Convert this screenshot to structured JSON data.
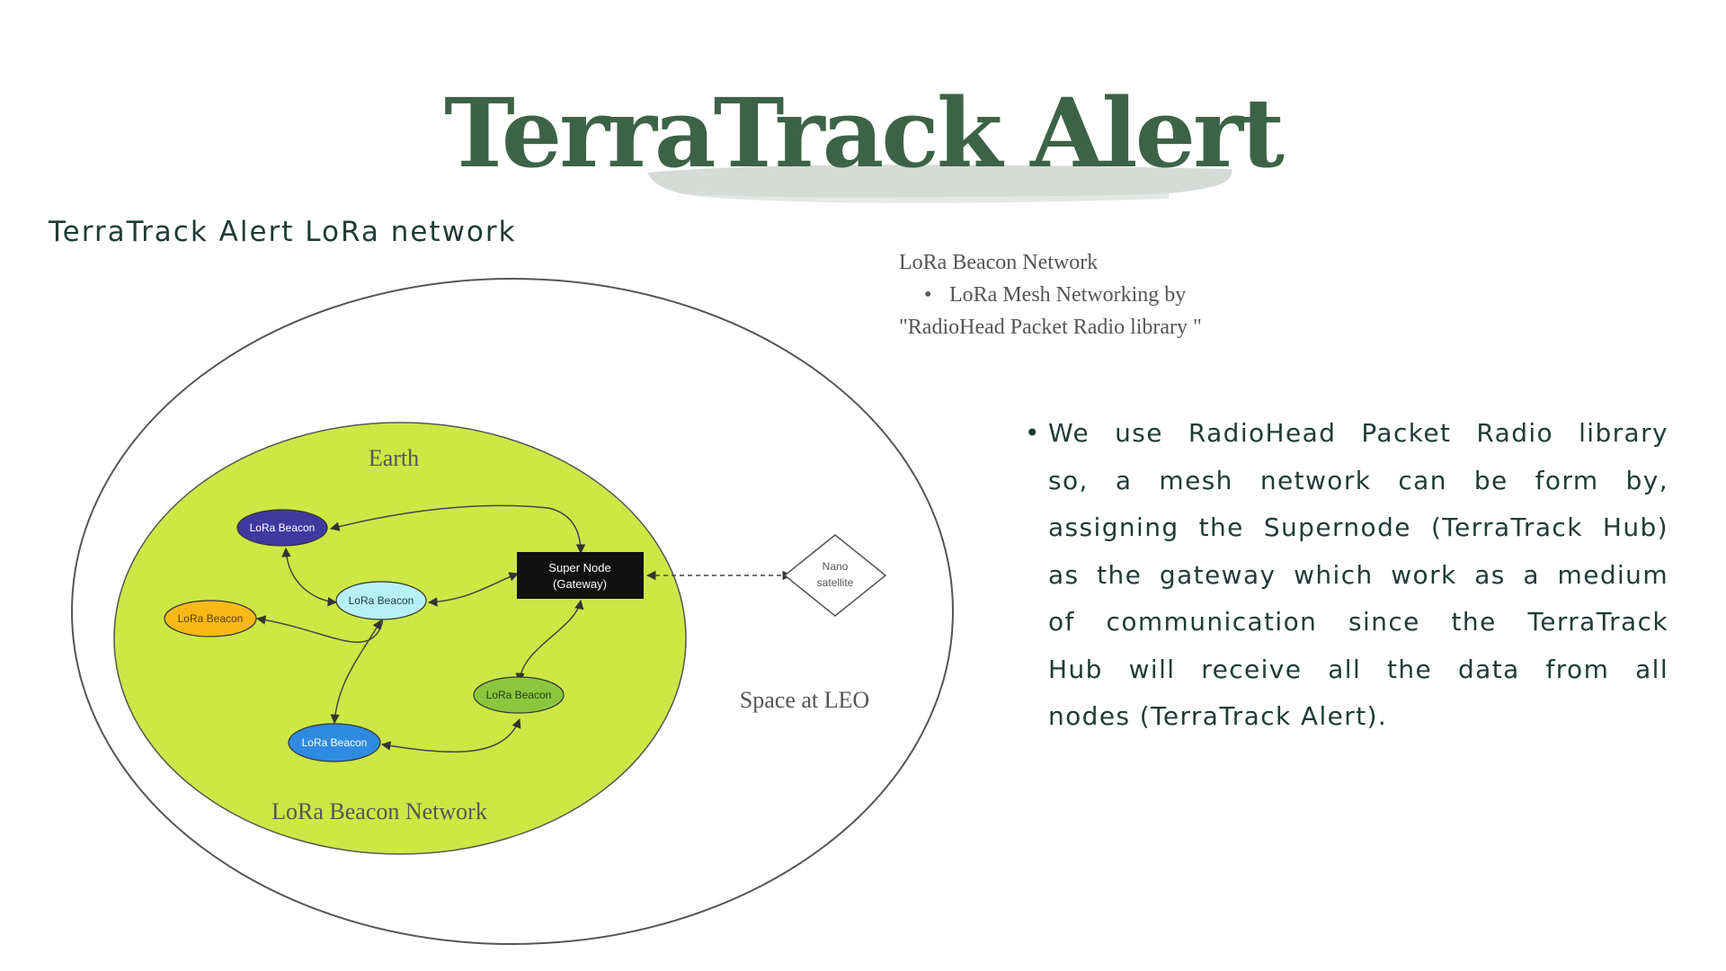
{
  "page": {
    "title": "TerraTrack Alert",
    "section_heading": "TerraTrack Alert LoRa network"
  },
  "diagram": {
    "space_label": "Space at LEO",
    "earth_label": "Earth",
    "network_label": "LoRa Beacon Network",
    "gateway": {
      "line1": "Super Node",
      "line2": "(Gateway)"
    },
    "satellite": {
      "line1": "Nano",
      "line2": "satellite"
    },
    "beacons": [
      {
        "label": "LoRa Beacon",
        "fill": "#3f3a9e",
        "text_color": "#ffffff"
      },
      {
        "label": "LoRa Beacon",
        "fill": "#b8f0f7",
        "text_color": "#1a3e45"
      },
      {
        "label": "LoRa Beacon",
        "fill": "#f8b917",
        "text_color": "#5a3a00"
      },
      {
        "label": "LoRa Beacon",
        "fill": "#8cc63f",
        "text_color": "#1f3d10"
      },
      {
        "label": "LoRa Beacon",
        "fill": "#2e8be0",
        "text_color": "#ffffff"
      }
    ],
    "colors": {
      "earth": "#cde745",
      "gateway": "#111111",
      "title": "#3d6347",
      "body_text": "#1f3b36"
    }
  },
  "note": {
    "heading": "LoRa Beacon Network",
    "bullet": "LoRa Mesh Networking by",
    "continuation": "\"RadioHead Packet Radio library \""
  },
  "description": {
    "lines": [
      "We use RadioHead Packet Radio library",
      "so, a mesh network can be form by,",
      "assigning the Supernode (TerraTrack Hub)",
      "as the gateway which work as a medium",
      "of communication since the TerraTrack",
      "Hub will receive all the data from all",
      "nodes (TerraTrack Alert)."
    ]
  }
}
